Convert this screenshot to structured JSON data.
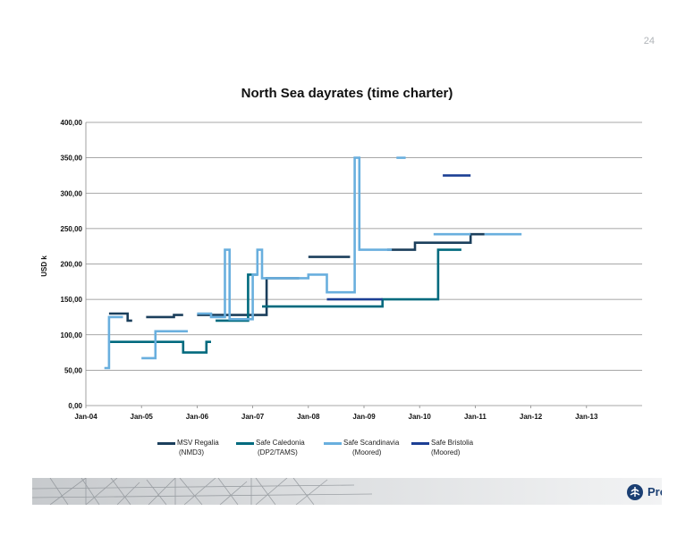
{
  "page": {
    "number": "24"
  },
  "logo": {
    "name": "Prosafe-logo",
    "text": "Prosafe"
  },
  "chart_data": {
    "type": "line",
    "title": "North Sea dayrates (time charter)",
    "xlabel": "",
    "ylabel": "USD k",
    "ylim": [
      0,
      400
    ],
    "yticks": [
      0,
      50,
      100,
      150,
      200,
      250,
      300,
      350,
      400
    ],
    "ytick_labels": [
      "0,00",
      "50,00",
      "100,00",
      "150,00",
      "200,00",
      "250,00",
      "300,00",
      "350,00",
      "400,00"
    ],
    "xlim": [
      "2004-01",
      "2013-12"
    ],
    "xtick_labels": [
      "Jan-04",
      "Jan-05",
      "Jan-06",
      "Jan-07",
      "Jan-08",
      "Jan-09",
      "Jan-10",
      "Jan-11",
      "Jan-12",
      "Jan-13"
    ],
    "grid": true,
    "legend_position": "bottom",
    "series": [
      {
        "name": "MSV Regalia (NMD3)",
        "legend_line1": "MSV Regalia",
        "legend_line2": "(NMD3)",
        "color": "#1b3f5c",
        "step": true,
        "segments": [
          [
            [
              "2004-06",
              130
            ],
            [
              "2004-10",
              130
            ],
            [
              "2004-10",
              120
            ],
            [
              "2004-11",
              120
            ]
          ],
          [
            [
              "2005-02",
              125
            ],
            [
              "2005-08",
              125
            ],
            [
              "2005-08",
              128
            ],
            [
              "2005-10",
              128
            ]
          ],
          [
            [
              "2006-01",
              128
            ],
            [
              "2007-04",
              128
            ],
            [
              "2007-04",
              180
            ],
            [
              "2007-11",
              180
            ]
          ],
          [
            [
              "2008-01",
              210
            ],
            [
              "2008-10",
              210
            ]
          ],
          [
            [
              "2009-06",
              220
            ],
            [
              "2009-12",
              220
            ],
            [
              "2009-12",
              230
            ],
            [
              "2010-12",
              230
            ],
            [
              "2010-12",
              242
            ],
            [
              "2011-03",
              242
            ]
          ]
        ]
      },
      {
        "name": "Safe Caledonia (DP2/TAMS)",
        "legend_line1": "Safe Caledonia",
        "legend_line2": "(DP2/TAMS)",
        "color": "#006a7e",
        "step": true,
        "segments": [
          [
            [
              "2004-06",
              90
            ],
            [
              "2005-10",
              90
            ],
            [
              "2005-10",
              75
            ],
            [
              "2006-03",
              75
            ],
            [
              "2006-03",
              90
            ],
            [
              "2006-04",
              90
            ]
          ],
          [
            [
              "2006-05",
              120
            ],
            [
              "2006-12",
              120
            ],
            [
              "2006-12",
              185
            ],
            [
              "2007-02",
              185
            ]
          ],
          [
            [
              "2007-03",
              140
            ],
            [
              "2009-05",
              140
            ],
            [
              "2009-05",
              150
            ],
            [
              "2010-05",
              150
            ],
            [
              "2010-05",
              220
            ],
            [
              "2010-10",
              220
            ]
          ]
        ]
      },
      {
        "name": "Safe Scandinavia (Moored)",
        "legend_line1": "Safe Scandinavia",
        "legend_line2": "(Moored)",
        "color": "#69afde",
        "step": true,
        "segments": [
          [
            [
              "2004-05",
              53
            ],
            [
              "2004-06",
              53
            ],
            [
              "2004-06",
              125
            ],
            [
              "2004-09",
              125
            ]
          ],
          [
            [
              "2005-01",
              67
            ],
            [
              "2005-04",
              67
            ],
            [
              "2005-04",
              105
            ],
            [
              "2005-11",
              105
            ]
          ],
          [
            [
              "2006-01",
              130
            ],
            [
              "2006-04",
              130
            ],
            [
              "2006-04",
              125
            ],
            [
              "2006-07",
              125
            ],
            [
              "2006-07",
              220
            ],
            [
              "2006-08",
              220
            ],
            [
              "2006-08",
              122
            ],
            [
              "2007-01",
              122
            ],
            [
              "2007-01",
              185
            ],
            [
              "2007-02",
              185
            ],
            [
              "2007-02",
              220
            ],
            [
              "2007-03",
              220
            ],
            [
              "2007-03",
              180
            ],
            [
              "2008-01",
              180
            ],
            [
              "2008-01",
              185
            ],
            [
              "2008-05",
              185
            ],
            [
              "2008-05",
              160
            ],
            [
              "2008-11",
              160
            ],
            [
              "2008-11",
              350
            ],
            [
              "2008-12",
              350
            ],
            [
              "2008-12",
              220
            ],
            [
              "2009-07",
              220
            ]
          ],
          [
            [
              "2009-08",
              350
            ],
            [
              "2009-10",
              350
            ]
          ],
          [
            [
              "2010-04",
              242
            ],
            [
              "2010-12",
              242
            ]
          ],
          [
            [
              "2011-03",
              242
            ],
            [
              "2011-11",
              242
            ]
          ]
        ]
      },
      {
        "name": "Safe Bristolia (Moored)",
        "legend_line1": "Safe Bristolia",
        "legend_line2": "(Moored)",
        "color": "#1c3f94",
        "step": true,
        "segments": [
          [
            [
              "2008-05",
              150
            ],
            [
              "2009-05",
              150
            ]
          ],
          [
            [
              "2010-06",
              325
            ],
            [
              "2010-12",
              325
            ]
          ]
        ]
      }
    ]
  }
}
